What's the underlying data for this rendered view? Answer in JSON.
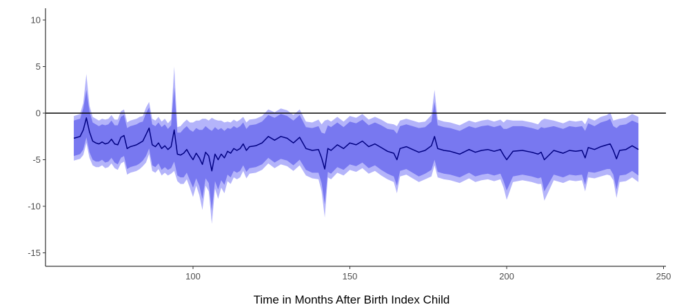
{
  "chart_data": {
    "type": "line",
    "title": "",
    "xlabel": "Time in Months After Birth Index Child",
    "ylabel": "",
    "xlim": [
      50,
      250
    ],
    "ylim": [
      -16.5,
      11
    ],
    "x_ticks": [
      100,
      150,
      200,
      250
    ],
    "y_ticks": [
      10,
      5,
      0,
      -5,
      -10,
      -15
    ],
    "x_tick_labels": [
      "100",
      "150",
      "200",
      "250"
    ],
    "y_tick_labels": [
      "10",
      "5",
      "0",
      "-5",
      "-10",
      "-15"
    ],
    "grid": false,
    "reference_line": {
      "y": 0,
      "color": "#000000"
    },
    "colors": {
      "line": "#000080",
      "inner_band": "#7878f0",
      "outer_band": "#b4b4fa",
      "axis": "#333333",
      "reference": "#000000"
    },
    "series": [
      {
        "type": "line",
        "x": [
          62,
          63,
          64,
          65,
          66,
          67,
          68,
          69,
          70,
          71,
          72,
          73,
          74,
          75,
          76,
          77,
          78,
          79,
          80,
          81,
          82,
          83,
          84,
          85,
          86,
          87,
          88,
          89,
          90,
          91,
          92,
          93,
          94,
          95,
          96,
          97,
          98,
          99,
          100,
          101,
          102,
          103,
          104,
          105,
          106,
          107,
          108,
          109,
          110,
          111,
          112,
          113,
          114,
          115,
          116,
          117,
          118,
          120,
          122,
          124,
          126,
          128,
          130,
          132,
          134,
          136,
          138,
          140,
          141,
          142,
          143,
          144,
          146,
          148,
          150,
          152,
          154,
          156,
          158,
          160,
          162,
          164,
          165,
          166,
          168,
          170,
          172,
          174,
          176,
          177,
          178,
          180,
          182,
          185,
          188,
          190,
          192,
          194,
          196,
          198,
          199,
          200,
          202,
          205,
          208,
          210,
          211,
          212,
          215,
          218,
          220,
          222,
          224,
          225,
          226,
          228,
          230,
          232,
          233,
          234,
          235,
          236,
          238,
          240,
          242
        ],
        "y": [
          -2.7,
          -2.6,
          -2.5,
          -1.8,
          -0.5,
          -2.0,
          -3.0,
          -3.2,
          -3.3,
          -3.1,
          -3.3,
          -3.2,
          -2.8,
          -3.3,
          -3.4,
          -2.6,
          -2.4,
          -3.8,
          -3.6,
          -3.5,
          -3.4,
          -3.2,
          -3.0,
          -2.3,
          -1.6,
          -3.4,
          -3.6,
          -3.2,
          -3.8,
          -3.5,
          -3.9,
          -3.6,
          -1.8,
          -4.4,
          -4.5,
          -4.3,
          -3.9,
          -4.5,
          -5.0,
          -4.3,
          -4.8,
          -5.5,
          -4.2,
          -4.6,
          -6.2,
          -4.4,
          -5.0,
          -4.4,
          -4.8,
          -4.1,
          -4.3,
          -3.8,
          -4.0,
          -3.8,
          -3.3,
          -4.0,
          -3.6,
          -3.5,
          -3.2,
          -2.5,
          -2.9,
          -2.5,
          -2.7,
          -3.2,
          -2.6,
          -3.8,
          -4.0,
          -3.9,
          -4.8,
          -6.0,
          -3.8,
          -4.0,
          -3.4,
          -3.8,
          -3.2,
          -3.4,
          -3.0,
          -3.6,
          -3.3,
          -3.7,
          -4.1,
          -4.3,
          -5.0,
          -3.8,
          -3.6,
          -3.9,
          -4.2,
          -4.0,
          -3.5,
          -2.5,
          -3.8,
          -4.0,
          -4.1,
          -4.4,
          -3.9,
          -4.2,
          -4.0,
          -3.9,
          -4.1,
          -3.9,
          -4.5,
          -5.0,
          -4.1,
          -4.0,
          -4.2,
          -4.4,
          -4.2,
          -5.0,
          -4.0,
          -4.3,
          -4.0,
          -4.1,
          -4.0,
          -4.8,
          -3.7,
          -3.9,
          -3.6,
          -3.4,
          -3.3,
          -4.0,
          -4.9,
          -4.0,
          -3.9,
          -3.5,
          -3.9
        ]
      }
    ],
    "bands": [
      {
        "level": "inner",
        "x": [
          62,
          63,
          64,
          65,
          66,
          67,
          68,
          69,
          70,
          71,
          72,
          73,
          74,
          75,
          76,
          77,
          78,
          79,
          80,
          81,
          82,
          83,
          84,
          85,
          86,
          87,
          88,
          89,
          90,
          91,
          92,
          93,
          94,
          95,
          96,
          97,
          98,
          99,
          100,
          101,
          102,
          103,
          104,
          105,
          106,
          107,
          108,
          109,
          110,
          111,
          112,
          113,
          114,
          115,
          116,
          117,
          118,
          120,
          122,
          124,
          126,
          128,
          130,
          132,
          134,
          136,
          138,
          140,
          141,
          142,
          143,
          144,
          146,
          148,
          150,
          152,
          154,
          156,
          158,
          160,
          162,
          164,
          165,
          166,
          168,
          170,
          172,
          174,
          176,
          177,
          178,
          180,
          182,
          185,
          188,
          190,
          192,
          194,
          196,
          198,
          199,
          200,
          202,
          205,
          208,
          210,
          211,
          212,
          215,
          218,
          220,
          222,
          224,
          225,
          226,
          228,
          230,
          232,
          233,
          234,
          235,
          236,
          238,
          240,
          242
        ],
        "lower": [
          -4.6,
          -4.5,
          -4.4,
          -3.9,
          -2.6,
          -4.2,
          -5.0,
          -5.2,
          -5.2,
          -5.0,
          -5.3,
          -5.2,
          -4.8,
          -5.3,
          -5.5,
          -4.8,
          -4.6,
          -6.0,
          -5.8,
          -5.7,
          -5.6,
          -5.4,
          -5.1,
          -4.6,
          -3.8,
          -5.6,
          -5.8,
          -5.4,
          -6.1,
          -5.8,
          -6.1,
          -5.9,
          -5.2,
          -6.7,
          -6.9,
          -6.9,
          -6.4,
          -7.2,
          -8.0,
          -7.0,
          -7.8,
          -9.2,
          -7.0,
          -7.5,
          -10.5,
          -7.3,
          -8.2,
          -7.2,
          -7.7,
          -6.6,
          -6.9,
          -6.2,
          -6.4,
          -6.2,
          -5.6,
          -6.3,
          -5.9,
          -5.8,
          -5.5,
          -4.8,
          -5.3,
          -4.9,
          -5.1,
          -5.6,
          -5.0,
          -6.1,
          -6.4,
          -6.4,
          -7.5,
          -9.8,
          -6.3,
          -6.5,
          -5.8,
          -6.1,
          -5.5,
          -5.7,
          -5.3,
          -5.9,
          -5.6,
          -6.1,
          -6.5,
          -6.8,
          -7.8,
          -6.2,
          -6.0,
          -6.4,
          -6.8,
          -6.5,
          -6.1,
          -5.0,
          -6.3,
          -6.5,
          -6.6,
          -6.9,
          -6.4,
          -6.8,
          -6.6,
          -6.5,
          -6.7,
          -6.5,
          -7.3,
          -8.3,
          -6.8,
          -6.6,
          -6.8,
          -7.0,
          -6.9,
          -8.4,
          -6.6,
          -6.9,
          -6.6,
          -6.7,
          -6.6,
          -7.7,
          -6.3,
          -6.4,
          -6.2,
          -6.0,
          -6.0,
          -6.6,
          -8.2,
          -6.7,
          -6.6,
          -6.2,
          -6.7
        ],
        "upper": [
          -0.8,
          -0.7,
          -0.6,
          0.5,
          2.5,
          0.2,
          -1.0,
          -1.2,
          -1.4,
          -1.2,
          -1.3,
          -1.2,
          -0.8,
          -1.3,
          -1.3,
          -0.4,
          -0.2,
          -1.6,
          -1.4,
          -1.3,
          -1.2,
          -1.0,
          -0.9,
          0.0,
          0.6,
          -1.2,
          -1.4,
          -1.0,
          -1.5,
          -1.2,
          -1.7,
          -1.3,
          2.8,
          -2.1,
          -2.1,
          -1.7,
          -1.4,
          -1.8,
          -2.0,
          -1.6,
          -1.8,
          -1.8,
          -1.4,
          -1.7,
          -1.9,
          -1.5,
          -1.8,
          -1.6,
          -1.9,
          -1.6,
          -1.7,
          -1.4,
          -1.6,
          -1.4,
          -1.0,
          -1.7,
          -1.3,
          -1.2,
          -0.9,
          -0.2,
          -0.5,
          -0.1,
          -0.3,
          -0.8,
          -0.2,
          -1.5,
          -1.6,
          -1.4,
          -2.1,
          -2.2,
          -1.3,
          -1.5,
          -1.0,
          -1.5,
          -0.9,
          -1.1,
          -0.7,
          -1.3,
          -1.0,
          -1.3,
          -1.7,
          -1.8,
          -2.2,
          -1.4,
          -1.2,
          -1.4,
          -1.6,
          -1.5,
          -0.9,
          1.2,
          -1.3,
          -1.5,
          -1.6,
          -1.9,
          -1.4,
          -1.6,
          -1.4,
          -1.3,
          -1.5,
          -1.3,
          -1.7,
          -1.7,
          -1.4,
          -1.4,
          -1.6,
          -1.8,
          -1.5,
          -1.6,
          -1.4,
          -1.7,
          -1.4,
          -1.5,
          -1.4,
          -1.9,
          -1.1,
          -1.4,
          -1.0,
          -0.8,
          -0.6,
          -1.4,
          -1.6,
          -1.3,
          -1.2,
          -0.8,
          -1.1
        ]
      },
      {
        "level": "outer",
        "x": [
          62,
          63,
          64,
          65,
          66,
          67,
          68,
          69,
          70,
          71,
          72,
          73,
          74,
          75,
          76,
          77,
          78,
          79,
          80,
          81,
          82,
          83,
          84,
          85,
          86,
          87,
          88,
          89,
          90,
          91,
          92,
          93,
          94,
          95,
          96,
          97,
          98,
          99,
          100,
          101,
          102,
          103,
          104,
          105,
          106,
          107,
          108,
          109,
          110,
          111,
          112,
          113,
          114,
          115,
          116,
          117,
          118,
          120,
          122,
          124,
          126,
          128,
          130,
          132,
          134,
          136,
          138,
          140,
          141,
          142,
          143,
          144,
          146,
          148,
          150,
          152,
          154,
          156,
          158,
          160,
          162,
          164,
          165,
          166,
          168,
          170,
          172,
          174,
          176,
          177,
          178,
          180,
          182,
          185,
          188,
          190,
          192,
          194,
          196,
          198,
          199,
          200,
          202,
          205,
          208,
          210,
          211,
          212,
          215,
          218,
          220,
          222,
          224,
          225,
          226,
          228,
          230,
          232,
          233,
          234,
          235,
          236,
          238,
          240,
          242
        ],
        "lower": [
          -5.1,
          -5.0,
          -4.9,
          -4.5,
          -3.2,
          -4.8,
          -5.6,
          -5.8,
          -5.8,
          -5.6,
          -5.9,
          -5.8,
          -5.4,
          -5.9,
          -6.1,
          -5.4,
          -5.2,
          -6.6,
          -6.4,
          -6.3,
          -6.2,
          -6.0,
          -5.7,
          -5.3,
          -4.4,
          -6.2,
          -6.4,
          -6.0,
          -6.7,
          -6.4,
          -6.7,
          -6.5,
          -6.2,
          -7.3,
          -7.6,
          -7.6,
          -7.1,
          -8.0,
          -9.0,
          -7.8,
          -8.8,
          -10.4,
          -7.8,
          -8.4,
          -11.9,
          -8.1,
          -9.2,
          -8.0,
          -8.6,
          -7.3,
          -7.6,
          -6.9,
          -7.1,
          -6.9,
          -6.2,
          -7.0,
          -6.5,
          -6.4,
          -6.1,
          -5.4,
          -5.9,
          -5.5,
          -5.7,
          -6.2,
          -5.6,
          -6.7,
          -7.0,
          -7.1,
          -8.4,
          -11.2,
          -6.9,
          -7.1,
          -6.4,
          -6.7,
          -6.1,
          -6.3,
          -5.9,
          -6.5,
          -6.2,
          -6.7,
          -7.1,
          -7.4,
          -8.6,
          -6.8,
          -6.6,
          -7.0,
          -7.4,
          -7.1,
          -6.8,
          -5.6,
          -6.9,
          -7.1,
          -7.2,
          -7.5,
          -7.0,
          -7.4,
          -7.2,
          -7.1,
          -7.3,
          -7.1,
          -8.0,
          -9.3,
          -7.4,
          -7.2,
          -7.4,
          -7.6,
          -7.6,
          -9.4,
          -7.2,
          -7.5,
          -7.2,
          -7.3,
          -7.2,
          -8.4,
          -6.9,
          -7.0,
          -6.8,
          -6.6,
          -6.7,
          -7.2,
          -9.1,
          -7.4,
          -7.3,
          -6.9,
          -7.4
        ],
        "upper": [
          -0.3,
          -0.2,
          -0.1,
          1.1,
          4.2,
          0.8,
          -0.4,
          -0.6,
          -0.8,
          -0.6,
          -0.7,
          -0.6,
          -0.2,
          -0.7,
          -0.7,
          0.2,
          0.4,
          -1.0,
          -0.8,
          -0.7,
          -0.6,
          -0.4,
          -0.3,
          0.6,
          1.2,
          -0.6,
          -0.8,
          -0.4,
          -0.9,
          -0.6,
          -1.1,
          -0.7,
          5.0,
          -1.5,
          -1.4,
          -1.0,
          -0.7,
          -1.0,
          -1.0,
          -0.8,
          -0.8,
          -0.6,
          -0.6,
          -0.8,
          -0.5,
          -0.7,
          -0.8,
          -0.8,
          -1.0,
          -0.9,
          -1.0,
          -0.7,
          -0.9,
          -0.7,
          -0.4,
          -1.0,
          -0.7,
          -0.6,
          -0.3,
          0.4,
          0.1,
          0.5,
          0.3,
          -0.2,
          0.4,
          -0.9,
          -1.0,
          -0.7,
          -1.2,
          -0.8,
          -0.7,
          -0.9,
          -0.4,
          -0.9,
          -0.3,
          -0.5,
          -0.1,
          -0.7,
          -0.4,
          -0.7,
          -1.1,
          -1.2,
          -1.4,
          -0.8,
          -0.6,
          -0.8,
          -1.0,
          -0.9,
          -0.2,
          2.5,
          -0.7,
          -0.9,
          -1.0,
          -1.3,
          -0.8,
          -1.0,
          -0.8,
          -0.7,
          -0.9,
          -0.7,
          -1.0,
          -0.7,
          -0.8,
          -0.8,
          -1.0,
          -1.2,
          -0.8,
          -0.6,
          -0.8,
          -1.1,
          -0.8,
          -0.9,
          -0.8,
          -1.2,
          -0.5,
          -0.8,
          -0.4,
          -0.2,
          0.1,
          -0.8,
          -0.7,
          -0.6,
          -0.5,
          -0.1,
          -0.4
        ]
      }
    ]
  }
}
